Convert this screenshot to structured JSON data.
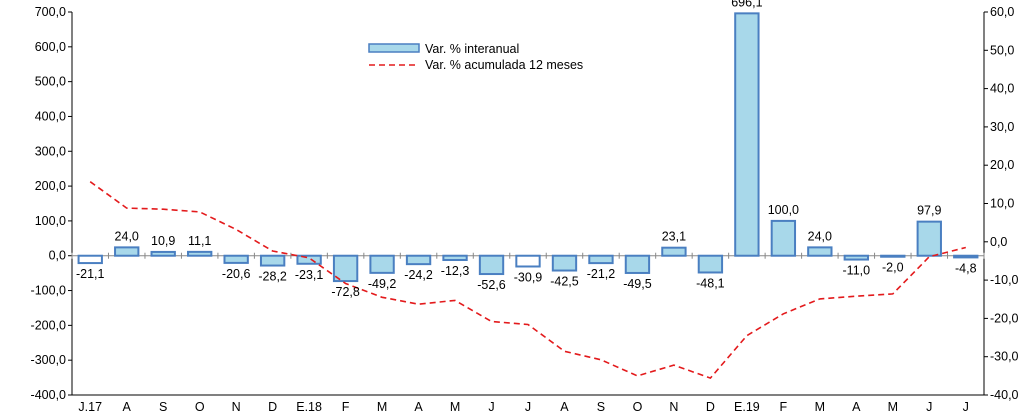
{
  "chart_data": {
    "type": "bar",
    "categories": [
      "J.17",
      "A",
      "S",
      "O",
      "N",
      "D",
      "E.18",
      "F",
      "M",
      "A",
      "M",
      "J",
      "J",
      "A",
      "S",
      "O",
      "N",
      "D",
      "E.19",
      "F",
      "M",
      "A",
      "M",
      "J",
      "J"
    ],
    "series": [
      {
        "name": "Var. % interanual",
        "type": "bar",
        "axis": "left",
        "color": "#a8d8ea",
        "edge_color": "#4a7fc1",
        "values": [
          -21.1,
          24.0,
          10.9,
          11.1,
          -20.6,
          -28.2,
          -23.1,
          -72.8,
          -49.2,
          -24.2,
          -12.3,
          -52.6,
          -30.9,
          -42.5,
          -21.2,
          -49.5,
          23.1,
          -48.1,
          696.1,
          100.0,
          24.0,
          -11.0,
          -2.0,
          97.9,
          -4.8
        ],
        "labels": [
          "-21,1",
          "24,0",
          "10,9",
          "11,1",
          "-20,6",
          "-28,2",
          "-23,1",
          "-72,8",
          "-49,2",
          "-24,2",
          "-12,3",
          "-52,6",
          "-30,9",
          "-42,5",
          "-21,2",
          "-49,5",
          "23,1",
          "-48,1",
          "696,1",
          "100,0",
          "24,0",
          "-11,0",
          "-2,0",
          "97,9",
          "-4,8"
        ],
        "highlighted_unfilled": [
          0,
          12
        ]
      },
      {
        "name": "Var. % acumulada 12 meses",
        "type": "line",
        "axis": "right",
        "color": "#e31a1c",
        "dashed": true,
        "values": [
          15.7,
          8.8,
          8.5,
          7.8,
          3.2,
          -2.4,
          -4.2,
          -10.9,
          -14.5,
          -16.3,
          -15.3,
          -20.8,
          -21.6,
          -28.6,
          -30.8,
          -35.0,
          -32.2,
          -35.6,
          -24.5,
          -18.8,
          -14.9,
          -14.2,
          -13.6,
          -3.9,
          -1.5
        ]
      }
    ],
    "y_left": {
      "min": -400,
      "max": 700,
      "step": 100,
      "ticks": [
        "-400,0",
        "-300,0",
        "-200,0",
        "-100,0",
        "0,0",
        "100,0",
        "200,0",
        "300,0",
        "400,0",
        "500,0",
        "600,0",
        "700,0"
      ]
    },
    "y_right": {
      "min": -40,
      "max": 60,
      "step": 10,
      "ticks": [
        "-40,0",
        "-30,0",
        "-20,0",
        "-10,0",
        "0,0",
        "10,0",
        "20,0",
        "30,0",
        "40,0",
        "50,0",
        "60,0"
      ]
    },
    "title": "",
    "xlabel": "",
    "ylabel": "",
    "grid": false,
    "legend_position": "top-center"
  }
}
